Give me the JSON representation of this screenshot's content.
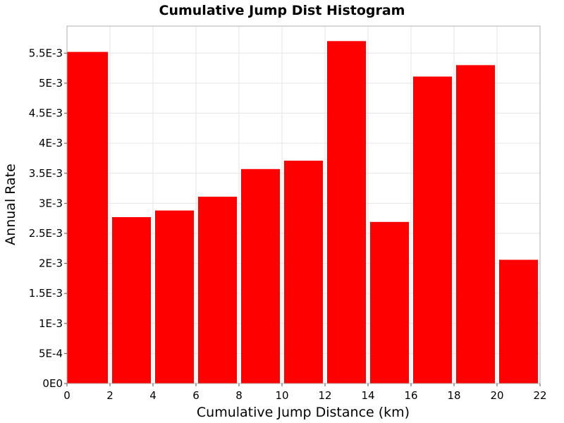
{
  "chart_data": {
    "type": "bar",
    "title": "Cumulative Jump Dist Histogram",
    "xlabel": "Cumulative Jump Distance (km)",
    "ylabel": "Annual Rate",
    "xlim": [
      0,
      22
    ],
    "ylim": [
      0,
      0.00595
    ],
    "xticks": [
      0,
      2,
      4,
      6,
      8,
      10,
      12,
      14,
      16,
      18,
      20,
      22
    ],
    "xtick_labels": [
      "0",
      "2",
      "4",
      "6",
      "8",
      "10",
      "12",
      "14",
      "16",
      "18",
      "20",
      "22"
    ],
    "yticks": [
      0,
      0.0005,
      0.001,
      0.0015,
      0.002,
      0.0025,
      0.003,
      0.0035,
      0.004,
      0.0045,
      0.005,
      0.0055
    ],
    "ytick_labels": [
      "0E0",
      "5E-4",
      "1E-3",
      "1.5E-3",
      "2E-3",
      "2.5E-3",
      "3E-3",
      "3.5E-3",
      "4E-3",
      "4.5E-3",
      "5E-3",
      "5.5E-3"
    ],
    "bin_width": 2,
    "bins": [
      {
        "x_start": 0,
        "x_end": 2,
        "value": 0.00552
      },
      {
        "x_start": 2,
        "x_end": 4,
        "value": 0.00277
      },
      {
        "x_start": 4,
        "x_end": 6,
        "value": 0.00288
      },
      {
        "x_start": 6,
        "x_end": 8,
        "value": 0.00311
      },
      {
        "x_start": 8,
        "x_end": 10,
        "value": 0.00357
      },
      {
        "x_start": 10,
        "x_end": 12,
        "value": 0.00371
      },
      {
        "x_start": 12,
        "x_end": 14,
        "value": 0.0057
      },
      {
        "x_start": 14,
        "x_end": 16,
        "value": 0.00269
      },
      {
        "x_start": 16,
        "x_end": 18,
        "value": 0.00511
      },
      {
        "x_start": 18,
        "x_end": 20,
        "value": 0.0053
      },
      {
        "x_start": 20,
        "x_end": 22,
        "value": 0.00206
      }
    ],
    "bar_color": "#ff0000",
    "grid": true,
    "legend": "none"
  }
}
